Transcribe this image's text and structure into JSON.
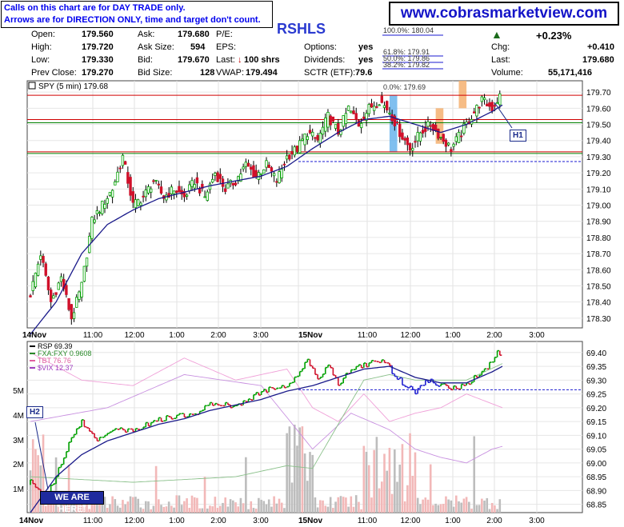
{
  "header": {
    "note_line1": "Calls on this chart are for DAY TRADE only.",
    "note_line2": "Arrows are for DIRECTION ONLY, time and target don't count.",
    "website": "www.cobrasmarketview.com",
    "ticker": "RSHLS",
    "arrow_symbol": "▲"
  },
  "quote": {
    "open_label": "Open:",
    "open": "179.560",
    "high_label": "High:",
    "high": "179.720",
    "low_label": "Low:",
    "low": "179.330",
    "prev_label": "Prev Close:",
    "prev": "179.270",
    "ask_label": "Ask:",
    "ask": "179.680",
    "asksize_label": "Ask Size:",
    "asksize": "594",
    "bid_label": "Bid:",
    "bid": "179.670",
    "bidsize_label": "Bid Size:",
    "bidsize": "128",
    "pe_label": "P/E:",
    "pe": "",
    "eps_label": "EPS:",
    "eps": "",
    "last_label": "Last:",
    "last_shrs": "100 shrs",
    "vwap_label": "VWAP:",
    "vwap": "179.494",
    "options_label": "Options:",
    "options": "yes",
    "div_label": "Dividends:",
    "div": "yes",
    "sctr_label": "SCTR (ETF):",
    "sctr": "79.6",
    "change_pct": "+0.23%",
    "chg_label": "Chg:",
    "chg": "+0.410",
    "last2_label": "Last:",
    "last2": "179.680",
    "vol_label": "Volume:",
    "vol": "55,171,416"
  },
  "callouts": {
    "h1": "H1",
    "h2": "H2",
    "here": "WE ARE HERE!"
  },
  "colors": {
    "up": "#00a000",
    "down": "#d0102a",
    "ma": "#1a1a8a",
    "red_line": "#d00000",
    "green_line": "#008000",
    "fib": "#1a1ad0"
  },
  "chart_data": [
    {
      "type": "candlestick",
      "title": "SPY (5 min) 179.68",
      "x_ticks": [
        "14Nov",
        "11:00",
        "12:00",
        "1:00",
        "2:00",
        "3:00",
        "15Nov",
        "11:00",
        "12:00",
        "1:00",
        "2:00",
        "3:00"
      ],
      "y_ticks": [
        179.7,
        179.6,
        179.5,
        179.4,
        179.3,
        179.2,
        179.1,
        179.0,
        178.9,
        178.8,
        178.7,
        178.6,
        178.5,
        178.4,
        178.3
      ],
      "ylim": [
        178.24,
        179.77
      ],
      "horizontal_lines": [
        {
          "value": 179.68,
          "color": "red"
        },
        {
          "value": 179.53,
          "color": "red"
        },
        {
          "value": 179.51,
          "color": "green"
        },
        {
          "value": 179.33,
          "color": "red"
        },
        {
          "value": 179.32,
          "color": "green"
        },
        {
          "value": 179.27,
          "style": "dashed",
          "color": "blue"
        }
      ],
      "fibonacci": [
        {
          "label": "100.0%: 180.04"
        },
        {
          "label": "61.8%: 179.91"
        },
        {
          "label": "50.0%: 179.86"
        },
        {
          "label": "38.2%: 179.82"
        },
        {
          "label": "0.0%: 179.69"
        }
      ],
      "path_points": [
        [
          0,
          178.45
        ],
        [
          4,
          178.7
        ],
        [
          8,
          178.4
        ],
        [
          12,
          178.55
        ],
        [
          16,
          178.3
        ],
        [
          20,
          178.5
        ],
        [
          24,
          178.9
        ],
        [
          28,
          179.0
        ],
        [
          32,
          179.1
        ],
        [
          36,
          179.3
        ],
        [
          40,
          179.0
        ],
        [
          44,
          179.05
        ],
        [
          48,
          179.15
        ],
        [
          52,
          179.05
        ],
        [
          56,
          179.1
        ],
        [
          60,
          179.05
        ],
        [
          64,
          179.15
        ],
        [
          68,
          179.05
        ],
        [
          72,
          179.2
        ],
        [
          76,
          179.1
        ],
        [
          80,
          179.15
        ],
        [
          84,
          179.25
        ],
        [
          88,
          179.18
        ],
        [
          92,
          179.25
        ],
        [
          96,
          179.15
        ],
        [
          100,
          179.3
        ],
        [
          104,
          179.35
        ],
        [
          108,
          179.45
        ],
        [
          112,
          179.4
        ],
        [
          116,
          179.55
        ],
        [
          120,
          179.45
        ],
        [
          124,
          179.6
        ],
        [
          128,
          179.5
        ],
        [
          132,
          179.6
        ],
        [
          136,
          179.65
        ],
        [
          140,
          179.58
        ],
        [
          144,
          179.45
        ],
        [
          148,
          179.35
        ],
        [
          152,
          179.45
        ],
        [
          156,
          179.5
        ],
        [
          160,
          179.42
        ],
        [
          164,
          179.35
        ],
        [
          168,
          179.45
        ],
        [
          172,
          179.55
        ],
        [
          176,
          179.65
        ],
        [
          180,
          179.6
        ],
        [
          184,
          179.7
        ]
      ],
      "ma_points": [
        [
          0,
          178.2
        ],
        [
          10,
          178.4
        ],
        [
          20,
          178.7
        ],
        [
          30,
          178.88
        ],
        [
          40,
          178.97
        ],
        [
          50,
          179.04
        ],
        [
          60,
          179.08
        ],
        [
          70,
          179.12
        ],
        [
          80,
          179.15
        ],
        [
          90,
          179.18
        ],
        [
          100,
          179.24
        ],
        [
          110,
          179.35
        ],
        [
          120,
          179.45
        ],
        [
          130,
          179.53
        ],
        [
          140,
          179.55
        ],
        [
          150,
          179.5
        ],
        [
          160,
          179.45
        ],
        [
          170,
          179.5
        ],
        [
          180,
          179.58
        ],
        [
          184,
          179.62
        ]
      ],
      "highlights": [
        {
          "from": 140,
          "to": 143,
          "color": "blue",
          "ymin": 179.33,
          "ymax": 179.68
        },
        {
          "from": 158,
          "to": 161,
          "color": "orange",
          "ymin": 179.38,
          "ymax": 179.6
        },
        {
          "from": 167,
          "to": 170,
          "color": "orange",
          "ymin": 179.6,
          "ymax": 179.77
        }
      ],
      "bar_count": 184
    },
    {
      "type": "line",
      "title": "RSP 69.39",
      "series": [
        {
          "name": "FXA:FXY 0.9608",
          "color": "#2a8a2a"
        },
        {
          "name": "TBT 76.76",
          "color": "#e060a0"
        },
        {
          "name": "$VIX 12.37",
          "color": "#a040c0"
        }
      ],
      "x_ticks": [
        "14Nov",
        "11:00",
        "12:00",
        "1:00",
        "2:00",
        "3:00",
        "15Nov",
        "11:00",
        "12:00",
        "1:00",
        "2:00",
        "3:00"
      ],
      "y_ticks_right": [
        69.4,
        69.35,
        69.3,
        69.25,
        69.2,
        69.15,
        69.1,
        69.05,
        69.0,
        68.95,
        68.9,
        68.85
      ],
      "ylim_right": [
        68.82,
        69.44
      ],
      "y_ticks_left": [
        "5M",
        "4M",
        "3M",
        "2M",
        "1M"
      ],
      "horizontal_lines": [
        {
          "value": 69.265,
          "style": "dashed",
          "color": "blue"
        }
      ],
      "rsp_points": [
        [
          0,
          68.93
        ],
        [
          6,
          68.88
        ],
        [
          10,
          68.95
        ],
        [
          14,
          69.05
        ],
        [
          20,
          69.15
        ],
        [
          26,
          69.08
        ],
        [
          32,
          69.12
        ],
        [
          40,
          69.12
        ],
        [
          48,
          69.15
        ],
        [
          56,
          69.17
        ],
        [
          64,
          69.18
        ],
        [
          72,
          69.22
        ],
        [
          80,
          69.2
        ],
        [
          88,
          69.25
        ],
        [
          96,
          69.28
        ],
        [
          100,
          69.27
        ],
        [
          104,
          69.32
        ],
        [
          108,
          69.38
        ],
        [
          112,
          69.3
        ],
        [
          116,
          69.35
        ],
        [
          120,
          69.29
        ],
        [
          126,
          69.34
        ],
        [
          132,
          69.36
        ],
        [
          138,
          69.37
        ],
        [
          142,
          69.32
        ],
        [
          146,
          69.28
        ],
        [
          150,
          69.26
        ],
        [
          154,
          69.3
        ],
        [
          160,
          69.28
        ],
        [
          166,
          69.27
        ],
        [
          172,
          69.3
        ],
        [
          178,
          69.35
        ],
        [
          182,
          69.4
        ],
        [
          184,
          69.39
        ]
      ],
      "rsp_ma_points": [
        [
          0,
          68.82
        ],
        [
          10,
          68.95
        ],
        [
          20,
          69.03
        ],
        [
          30,
          69.08
        ],
        [
          40,
          69.11
        ],
        [
          50,
          69.14
        ],
        [
          60,
          69.16
        ],
        [
          70,
          69.19
        ],
        [
          80,
          69.21
        ],
        [
          90,
          69.23
        ],
        [
          100,
          69.26
        ],
        [
          110,
          69.28
        ],
        [
          120,
          69.31
        ],
        [
          130,
          69.34
        ],
        [
          140,
          69.35
        ],
        [
          150,
          69.31
        ],
        [
          160,
          69.29
        ],
        [
          170,
          69.29
        ],
        [
          180,
          69.33
        ],
        [
          184,
          69.35
        ]
      ],
      "fxa_points": [
        [
          0,
          68.95
        ],
        [
          40,
          68.93
        ],
        [
          80,
          68.95
        ],
        [
          100,
          68.99
        ],
        [
          110,
          68.98
        ],
        [
          130,
          69.3
        ],
        [
          140,
          69.32
        ],
        [
          150,
          69.3
        ],
        [
          160,
          69.3
        ],
        [
          170,
          69.3
        ],
        [
          184,
          69.36
        ]
      ],
      "tbt_points": [
        [
          0,
          69.4
        ],
        [
          20,
          69.3
        ],
        [
          40,
          69.28
        ],
        [
          60,
          69.38
        ],
        [
          80,
          69.3
        ],
        [
          100,
          69.34
        ],
        [
          110,
          69.2
        ],
        [
          120,
          69.15
        ],
        [
          130,
          69.25
        ],
        [
          140,
          69.15
        ],
        [
          150,
          69.18
        ],
        [
          160,
          69.2
        ],
        [
          170,
          69.25
        ],
        [
          184,
          69.2
        ]
      ],
      "vix_points": [
        [
          0,
          69.15
        ],
        [
          30,
          69.2
        ],
        [
          60,
          69.32
        ],
        [
          90,
          69.28
        ],
        [
          110,
          69.05
        ],
        [
          125,
          69.18
        ],
        [
          140,
          69.12
        ],
        [
          150,
          69.05
        ],
        [
          160,
          69.02
        ],
        [
          170,
          69.0
        ],
        [
          180,
          69.05
        ],
        [
          184,
          69.06
        ]
      ],
      "volume_max": 5000000,
      "bar_count": 184
    }
  ]
}
